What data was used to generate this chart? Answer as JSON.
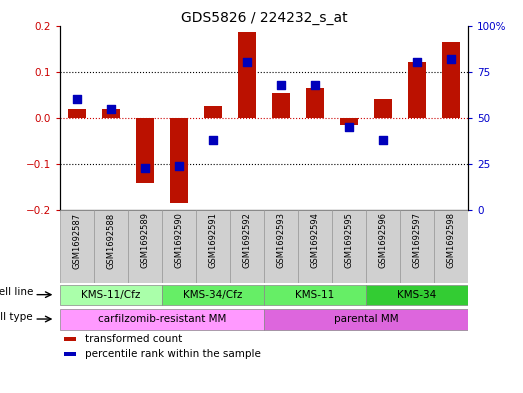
{
  "title": "GDS5826 / 224232_s_at",
  "samples": [
    "GSM1692587",
    "GSM1692588",
    "GSM1692589",
    "GSM1692590",
    "GSM1692591",
    "GSM1692592",
    "GSM1692593",
    "GSM1692594",
    "GSM1692595",
    "GSM1692596",
    "GSM1692597",
    "GSM1692598"
  ],
  "transformed_count": [
    0.02,
    0.02,
    -0.14,
    -0.185,
    0.025,
    0.185,
    0.055,
    0.065,
    -0.015,
    0.04,
    0.12,
    0.165
  ],
  "percentile_rank": [
    60,
    55,
    23,
    24,
    38,
    80,
    68,
    68,
    45,
    38,
    80,
    82
  ],
  "cell_line_groups": [
    {
      "label": "KMS-11/Cfz",
      "start": 0,
      "end": 3,
      "color": "#aaffaa"
    },
    {
      "label": "KMS-34/Cfz",
      "start": 3,
      "end": 6,
      "color": "#66ee66"
    },
    {
      "label": "KMS-11",
      "start": 6,
      "end": 9,
      "color": "#66ee66"
    },
    {
      "label": "KMS-34",
      "start": 9,
      "end": 12,
      "color": "#33cc33"
    }
  ],
  "cell_type_groups": [
    {
      "label": "carfilzomib-resistant MM",
      "start": 0,
      "end": 6,
      "color": "#ff99ff"
    },
    {
      "label": "parental MM",
      "start": 6,
      "end": 12,
      "color": "#dd66dd"
    }
  ],
  "bar_color": "#bb1100",
  "dot_color": "#0000bb",
  "ylim_left": [
    -0.2,
    0.2
  ],
  "ylim_right": [
    0,
    100
  ],
  "yticks_left": [
    -0.2,
    -0.1,
    0.0,
    0.1,
    0.2
  ],
  "yticks_right": [
    0,
    25,
    50,
    75,
    100
  ],
  "ytick_labels_right": [
    "0",
    "25",
    "50",
    "75",
    "100%"
  ],
  "hlines": [
    -0.1,
    0.0,
    0.1
  ],
  "hline_zero_color": "#cc0000",
  "hline_color": "black",
  "bar_width": 0.55,
  "dot_size": 28,
  "cell_line_row_label": "cell line",
  "cell_type_row_label": "cell type",
  "legend_items": [
    {
      "color": "#bb1100",
      "label": "transformed count"
    },
    {
      "color": "#0000bb",
      "label": "percentile rank within the sample"
    }
  ],
  "sample_row_color": "#d0d0d0",
  "sample_row_edgecolor": "#999999",
  "left_label_color": "#333333"
}
